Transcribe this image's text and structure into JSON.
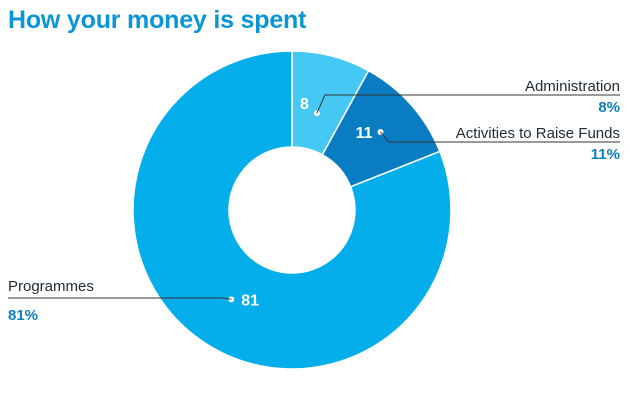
{
  "title": "How your money is spent",
  "chart_data": {
    "type": "pie",
    "donut": true,
    "title": "How your money is spent",
    "categories": [
      "Administration",
      "Activities to Raise Funds",
      "Programmes"
    ],
    "values": [
      8,
      11,
      81
    ],
    "value_labels": [
      "8",
      "11",
      "81"
    ],
    "percent_labels": [
      "8%",
      "11%",
      "81%"
    ],
    "colors": [
      "#45c8f4",
      "#0a7dc2",
      "#04aeea"
    ],
    "legend": "callout labels"
  },
  "colors": {
    "title": "#0a96d6",
    "percent_text": "#0a7fc2",
    "label_text": "#1f2a33",
    "leader_line": "#333333"
  }
}
